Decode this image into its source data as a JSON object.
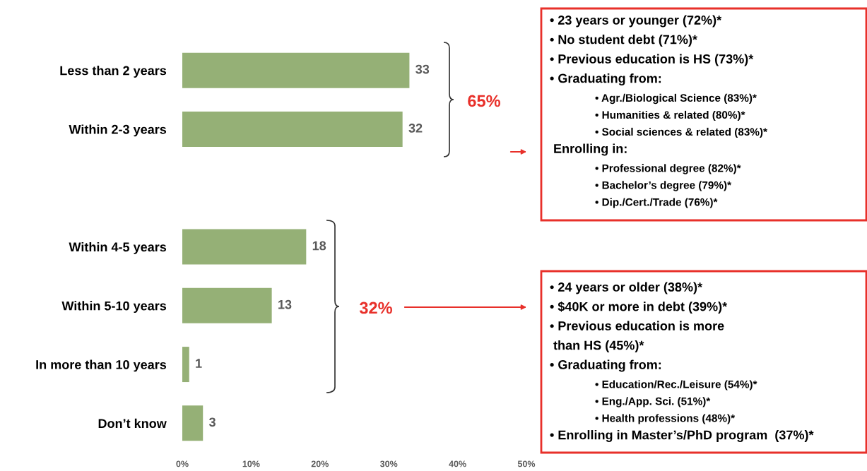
{
  "chart_data": {
    "type": "bar",
    "orientation": "horizontal",
    "categories": [
      "Less than 2 years",
      "Within 2-3 years",
      null,
      "Within 4-5 years",
      "Within 5-10 years",
      "In more than 10 years",
      "Don’t know"
    ],
    "values": [
      33,
      32,
      null,
      18,
      13,
      1,
      3
    ],
    "color": "#95b076",
    "xlim": [
      0,
      50
    ],
    "xticks": [
      {
        "value": 0,
        "label": "0%"
      },
      {
        "value": 10,
        "label": "10%"
      },
      {
        "value": 20,
        "label": "20%"
      },
      {
        "value": 30,
        "label": "30%"
      },
      {
        "value": 40,
        "label": "40%"
      },
      {
        "value": 50,
        "label": "50%"
      }
    ],
    "data_labels": true,
    "grid": false,
    "annotations": [
      "65%",
      "32%",
      "• 23 years or younger (72%)*\n• No student debt (71%)*\n• Previous education is HS (73%)*\n• Graduating from:\n        • Agr./Biological Science (83%)*\n        • Humanities & related (80%)*\n        • Social sciences & related (83%)*\n Enrolling in:\n        • Professional degree (82%)*\n        • Bachelor’s degree (79%)*\n        • Dip./Cert./Trade (76%)*",
      "• 24 years or older (38%)*\n• $40K or more in debt (39%)*\n• Previous education is more\n than HS (45%)*\n• Graduating from:\n        • Education/Rec./Leisure (54%)*\n        • Eng./App. Sci. (51%)*\n        • Health professions (48%)*\n• Enrolling in Master’s/PhD program  (37%)*"
    ]
  }
}
